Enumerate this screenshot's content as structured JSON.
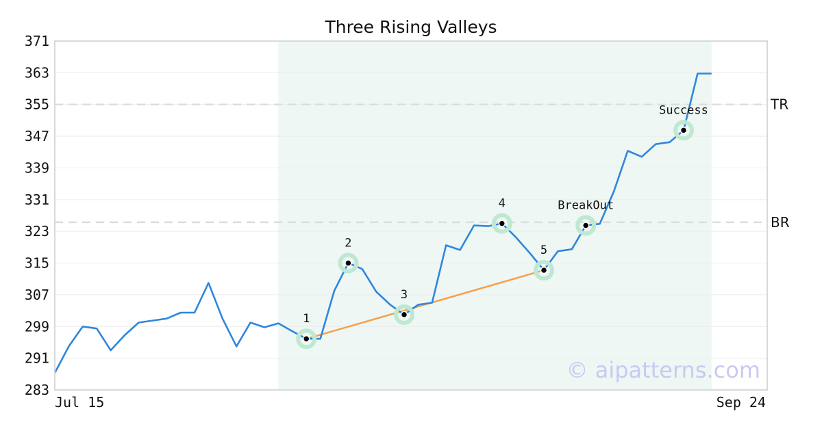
{
  "chart_data": {
    "type": "line",
    "title": "Three Rising Valleys",
    "xlabel": "",
    "ylabel": "",
    "ylim": [
      283,
      371
    ],
    "yticks": [
      "371",
      "363",
      "355",
      "347",
      "339",
      "331",
      "323",
      "315",
      "307",
      "299",
      "291",
      "283"
    ],
    "xtick_labels": [
      "Jul 15",
      "Sep 24"
    ],
    "grid": true,
    "colors": {
      "line": "#2e86de",
      "trend": "#f5a04a",
      "highlight": "#eef7f3",
      "marker_ring": "#bfe8d2",
      "hline": "#dddddd"
    },
    "series": [
      {
        "values": [
          287.3,
          294.0,
          299.0,
          298.5,
          293.0,
          296.8,
          300.0,
          300.5,
          301.0,
          302.5,
          302.5,
          310.0,
          301.0,
          294.0,
          300.0,
          298.8,
          299.8,
          297.8,
          295.9,
          295.9,
          308.0,
          315.0,
          313.5,
          307.8,
          304.5,
          302.0,
          304.5,
          305.0,
          319.5,
          318.3,
          324.5,
          324.3,
          325.0,
          321.5,
          317.5,
          313.2,
          318.0,
          318.5,
          324.5,
          324.9,
          333.0,
          343.3,
          341.8,
          345.0,
          345.5,
          348.5,
          362.8,
          362.8
        ]
      }
    ],
    "highlight_range": [
      16,
      47
    ],
    "trendline": {
      "from_index": 18,
      "to_index": 35,
      "from_value": 295.9,
      "to_value": 313.2
    },
    "horizontal_lines": [
      {
        "label": "TR",
        "value": 355.0
      },
      {
        "label": "BR",
        "value": 325.3
      }
    ],
    "annotations": [
      {
        "label": "1",
        "index": 18,
        "value": 295.9
      },
      {
        "label": "2",
        "index": 21,
        "value": 315.0
      },
      {
        "label": "3",
        "index": 25,
        "value": 302.0
      },
      {
        "label": "4",
        "index": 32,
        "value": 325.0
      },
      {
        "label": "5",
        "index": 35,
        "value": 313.2
      },
      {
        "label": "BreakOut",
        "index": 38,
        "value": 324.5
      },
      {
        "label": "Success",
        "index": 45,
        "value": 348.5
      }
    ],
    "watermark": "© aipatterns.com"
  }
}
